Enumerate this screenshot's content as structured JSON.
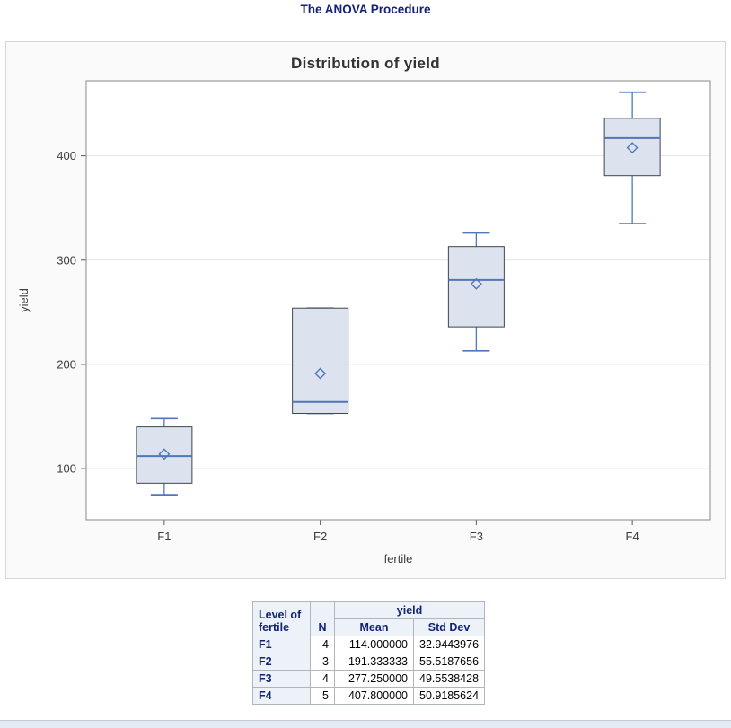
{
  "header": {
    "title": "The ANOVA Procedure"
  },
  "chart_data": {
    "type": "boxplot",
    "title": "Distribution of yield",
    "xlabel": "fertile",
    "ylabel": "yield",
    "ylim": [
      51,
      472
    ],
    "yticks": [
      100,
      200,
      300,
      400
    ],
    "categories": [
      "F1",
      "F2",
      "F3",
      "F4"
    ],
    "grid": true,
    "legend": "none",
    "series": [
      {
        "category": "F1",
        "min": 75,
        "q1": 86,
        "median": 112,
        "q3": 140,
        "max": 148,
        "mean": 114.0
      },
      {
        "category": "F2",
        "min": 153,
        "q1": 153,
        "median": 164,
        "q3": 254,
        "max": 254,
        "mean": 191.33
      },
      {
        "category": "F3",
        "min": 213,
        "q1": 236,
        "median": 281,
        "q3": 313,
        "max": 326,
        "mean": 277.25
      },
      {
        "category": "F4",
        "min": 335,
        "q1": 381,
        "median": 417,
        "q3": 436,
        "max": 461,
        "mean": 407.8
      }
    ],
    "colors": {
      "box_fill": "#dce3ee",
      "box_stroke": "#3f454b",
      "line": "#4f77bb",
      "grid": "#e4e4e4",
      "frame": "#898989",
      "tick": "#5a5a5a",
      "tick_label": "#3c3c3c"
    }
  },
  "table": {
    "col_headers": {
      "level": "Level of\nfertile",
      "n": "N",
      "group": "yield",
      "mean": "Mean",
      "stddev": "Std Dev"
    },
    "rows": [
      {
        "level": "F1",
        "n": "4",
        "mean": "114.000000",
        "stddev": "32.9443976"
      },
      {
        "level": "F2",
        "n": "3",
        "mean": "191.333333",
        "stddev": "55.5187656"
      },
      {
        "level": "F3",
        "n": "4",
        "mean": "277.250000",
        "stddev": "49.5538428"
      },
      {
        "level": "F4",
        "n": "5",
        "mean": "407.800000",
        "stddev": "50.9185624"
      }
    ]
  },
  "colors": {
    "title_text": "#112277",
    "table_header_bg": "#edf2f9",
    "table_border": "#b0b7bb",
    "panel_bg": "#fafafa"
  }
}
